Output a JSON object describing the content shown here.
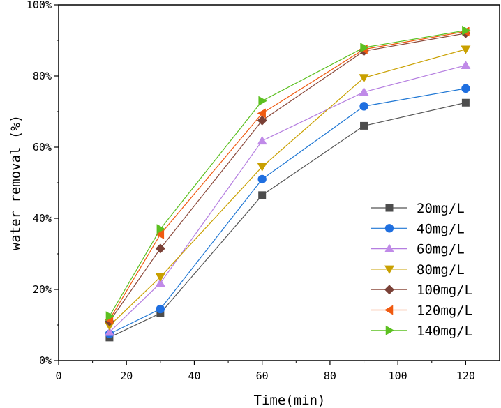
{
  "chart_data": {
    "type": "line",
    "title": "",
    "xlabel": "Time(min)",
    "ylabel": "water removal (%)",
    "xlim": [
      0,
      130
    ],
    "ylim": [
      0,
      100
    ],
    "x_ticks": [
      0,
      20,
      40,
      60,
      80,
      100,
      120
    ],
    "y_ticks": [
      0,
      20,
      40,
      60,
      80,
      100
    ],
    "y_tick_labels": [
      "0%",
      "20%",
      "40%",
      "60%",
      "80%",
      "100%"
    ],
    "x": [
      15,
      30,
      60,
      90,
      120
    ],
    "grid": false,
    "legend_position": "bottom-right",
    "series": [
      {
        "name": "20mg/L",
        "marker": "square",
        "color": "#555555",
        "fill": "#4d4d4d",
        "values": [
          6.5,
          13.3,
          46.5,
          66.0,
          72.5
        ]
      },
      {
        "name": "40mg/L",
        "marker": "circle",
        "color": "#1f77d4",
        "fill": "#1f6fe0",
        "values": [
          7.5,
          14.5,
          51.0,
          71.5,
          76.5
        ]
      },
      {
        "name": "60mg/L",
        "marker": "triangle-up",
        "color": "#b57ee0",
        "fill": "#c08ae8",
        "values": [
          8.0,
          21.8,
          61.8,
          75.5,
          83.0
        ]
      },
      {
        "name": "80mg/L",
        "marker": "triangle-down",
        "color": "#c9a000",
        "fill": "#c9a000",
        "values": [
          9.8,
          23.5,
          54.5,
          79.5,
          87.5
        ]
      },
      {
        "name": "100mg/L",
        "marker": "diamond",
        "color": "#8b4a3c",
        "fill": "#7a4036",
        "values": [
          11.0,
          31.5,
          67.5,
          87.0,
          92.0
        ]
      },
      {
        "name": "120mg/L",
        "marker": "triangle-left",
        "color": "#f05a10",
        "fill": "#f05a10",
        "values": [
          11.5,
          35.5,
          69.5,
          87.5,
          92.5
        ]
      },
      {
        "name": "140mg/L",
        "marker": "triangle-right",
        "color": "#5cc020",
        "fill": "#5cc020",
        "values": [
          12.5,
          37.0,
          73.0,
          88.0,
          92.8
        ]
      }
    ]
  }
}
